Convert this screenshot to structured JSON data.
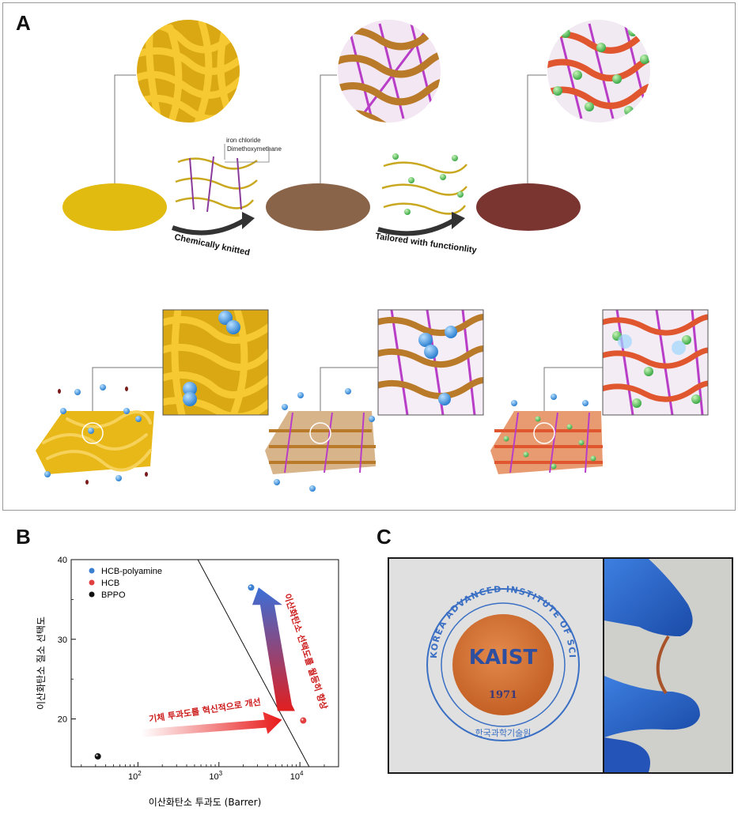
{
  "panel_labels": {
    "a": "A",
    "b": "B",
    "c": "C"
  },
  "panel_a": {
    "reagent_1": "iron chloride",
    "reagent_2": "Dimethoxymethane",
    "step_1": "Chemically knitted",
    "step_2": "Tailored with functionlity",
    "colors": {
      "membrane_1": "#e2bb10",
      "membrane_2": "#8a6448",
      "membrane_3": "#7a3530",
      "chain": "#c9941a",
      "crosslink": "#b040c0",
      "co2": "#3a8fd8",
      "functional": "#6ad06a"
    }
  },
  "chart_data": {
    "type": "scatter",
    "xlabel": "이산화탄소 투과도 (Barrer)",
    "ylabel": "이산화탄소 질소 선택도",
    "x_scale": "log",
    "xlim": [
      15,
      30000
    ],
    "ylim": [
      14,
      40
    ],
    "x_ticks": [
      {
        "value": 100,
        "label": "10",
        "exp": "2"
      },
      {
        "value": 1000,
        "label": "10",
        "exp": "3"
      },
      {
        "value": 10000,
        "label": "10",
        "exp": "4"
      }
    ],
    "y_ticks": [
      20,
      30,
      40
    ],
    "series": [
      {
        "name": "HCB-polyamine",
        "color": "#3a7fd0",
        "points": [
          {
            "x": 2500,
            "y": 36.5
          }
        ]
      },
      {
        "name": "HCB",
        "color": "#e24040",
        "points": [
          {
            "x": 11000,
            "y": 19.8
          }
        ]
      },
      {
        "name": "BPPO",
        "color": "#111111",
        "points": [
          {
            "x": 32,
            "y": 15.3
          }
        ]
      }
    ],
    "upper_bound": [
      {
        "x": 550,
        "y": 40
      },
      {
        "x": 13000,
        "y": 14
      }
    ],
    "annotations": {
      "horizontal_arrow": "기체 투과도를 혁신적으로 개선",
      "vertical_arrow": "이산화탄소 선택도를 월등히 향상"
    },
    "legend_position": "top-left"
  },
  "panel_c": {
    "seal_text": "KOREA ADVANCED INSTITUTE OF SCIENCE AND TECHNOLOGY",
    "seal_korean": "한국과학기술원",
    "logo_text": "KAIST",
    "year": "1971"
  }
}
